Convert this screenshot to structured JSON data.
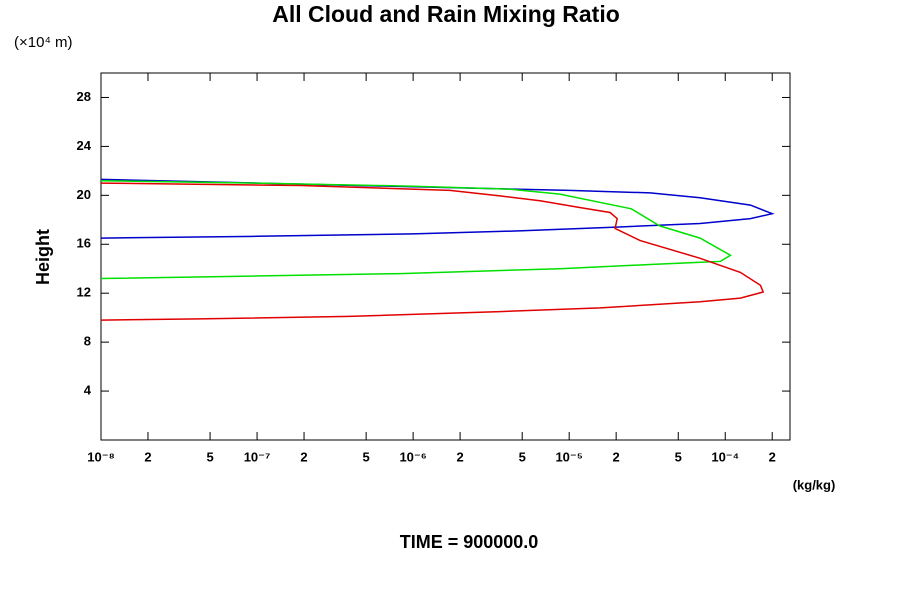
{
  "chart_data": {
    "type": "line",
    "title": "All Cloud and Rain Mixing Ratio",
    "y_label": "Height",
    "y_unit": "(×10⁴ m)",
    "x_unit": "(kg/kg)",
    "footer": "TIME = 900000.0",
    "xscale": "log",
    "xlim": [
      1e-08,
      0.00026
    ],
    "ylim": [
      0,
      30
    ],
    "xticks": [
      {
        "value": 1e-08,
        "label": "10⁻⁸"
      },
      {
        "value": 2e-08,
        "label": "2"
      },
      {
        "value": 5e-08,
        "label": "5"
      },
      {
        "value": 1e-07,
        "label": "10⁻⁷"
      },
      {
        "value": 2e-07,
        "label": "2"
      },
      {
        "value": 5e-07,
        "label": "5"
      },
      {
        "value": 1e-06,
        "label": "10⁻⁶"
      },
      {
        "value": 2e-06,
        "label": "2"
      },
      {
        "value": 5e-06,
        "label": "5"
      },
      {
        "value": 1e-05,
        "label": "10⁻⁵"
      },
      {
        "value": 2e-05,
        "label": "2"
      },
      {
        "value": 5e-05,
        "label": "5"
      },
      {
        "value": 0.0001,
        "label": "10⁻⁴"
      },
      {
        "value": 0.0002,
        "label": "2"
      }
    ],
    "yticks": [
      4,
      8,
      12,
      16,
      20,
      24,
      28
    ],
    "series": [
      {
        "color": "#0000cc",
        "x": [
          1e-08,
          1e-07,
          1e-06,
          1e-05,
          3.3e-05,
          6.9e-05,
          0.000145,
          0.0002,
          0.000145,
          6.9e-05,
          2e-05,
          5e-06,
          1e-06,
          1e-07,
          1e-08
        ],
        "values": [
          21.3,
          21.0,
          20.7,
          20.4,
          20.2,
          19.8,
          19.2,
          18.5,
          18.1,
          17.7,
          17.4,
          17.1,
          16.85,
          16.65,
          16.5
        ]
      },
      {
        "color": "#00e000",
        "x": [
          1e-08,
          1e-07,
          1e-06,
          4.2e-06,
          8.7e-06,
          2.5e-05,
          3.8e-05,
          6.9e-05,
          0.000108,
          9.3e-05,
          3.3e-05,
          8.7e-06,
          8.3e-07,
          9e-08,
          1e-08
        ],
        "values": [
          21.2,
          21.0,
          20.75,
          20.5,
          20.1,
          18.9,
          17.5,
          16.5,
          15.1,
          14.6,
          14.35,
          14.0,
          13.6,
          13.4,
          13.2
        ]
      },
      {
        "color": "#e00000",
        "x": [
          1e-08,
          1.9e-07,
          1.72e-06,
          3.6e-06,
          6.5e-06,
          1.18e-05,
          1.83e-05,
          2.03e-05,
          1.97e-05,
          2.85e-05,
          6.9e-05,
          0.000125,
          0.000168,
          0.000175,
          0.000125,
          6.9e-05,
          1.58e-05,
          3.6e-06,
          3.9e-07,
          4.3e-08,
          1e-08
        ],
        "values": [
          21.0,
          20.8,
          20.4,
          19.95,
          19.55,
          19.0,
          18.6,
          18.1,
          17.3,
          16.3,
          14.85,
          13.7,
          12.65,
          12.1,
          11.6,
          11.3,
          10.8,
          10.5,
          10.1,
          9.9,
          9.8
        ]
      }
    ]
  }
}
